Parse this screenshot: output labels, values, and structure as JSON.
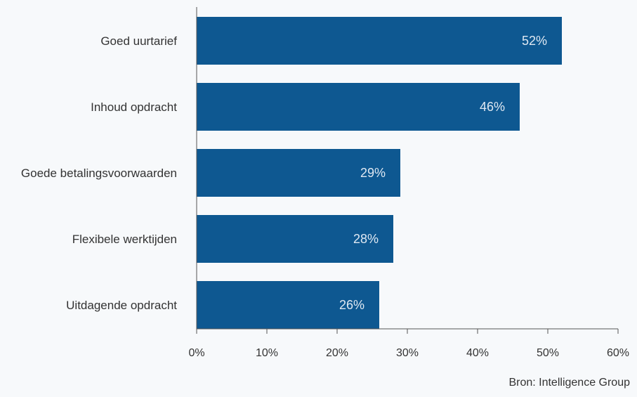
{
  "chart_data": {
    "type": "bar",
    "orientation": "horizontal",
    "categories": [
      "Goed uurtarief",
      "Inhoud opdracht",
      "Goede betalingsvoorwaarden",
      "Flexibele werktijden",
      "Uitdagende opdracht"
    ],
    "values": [
      52,
      46,
      29,
      28,
      26
    ],
    "value_labels": [
      "52%",
      "46%",
      "29%",
      "28%",
      "26%"
    ],
    "xlim": [
      0,
      60
    ],
    "x_ticks": [
      0,
      10,
      20,
      30,
      40,
      50,
      60
    ],
    "x_tick_labels": [
      "0%",
      "10%",
      "20%",
      "30%",
      "40%",
      "50%",
      "60%"
    ],
    "grid": false,
    "bar_color": "#0e5891"
  },
  "source": "Bron: Intelligence Group"
}
